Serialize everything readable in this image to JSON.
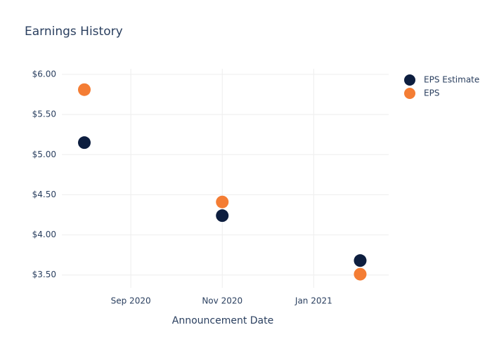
{
  "chart_data": {
    "type": "scatter",
    "title": "Earnings History",
    "x_label": "Announcement Date",
    "x": [
      "2020-08",
      "2020-11",
      "2021-02"
    ],
    "series": [
      {
        "name": "EPS Estimate",
        "color": "#0d1e3f",
        "values": [
          5.15,
          4.24,
          3.68
        ]
      },
      {
        "name": "EPS",
        "color": "#f47d34",
        "values": [
          5.81,
          4.41,
          3.51
        ]
      }
    ],
    "xlim": [
      "2020-07-17",
      "2021-02-20"
    ],
    "xticks": [
      {
        "value": "2020-09",
        "label": "Sep 2020"
      },
      {
        "value": "2020-11",
        "label": "Nov 2020"
      },
      {
        "value": "2021-01",
        "label": "Jan 2021"
      }
    ],
    "ylim": [
      3.34,
      6.07
    ],
    "yticks": [
      {
        "value": 3.5,
        "label": "$3.50"
      },
      {
        "value": 4,
        "label": "$4.00"
      },
      {
        "value": 4.5,
        "label": "$4.50"
      },
      {
        "value": 5,
        "label": "$5.00"
      },
      {
        "value": 5.5,
        "label": "$5.50"
      },
      {
        "value": 6,
        "label": "$6.00"
      }
    ],
    "grid": true,
    "legend": "top-right"
  }
}
